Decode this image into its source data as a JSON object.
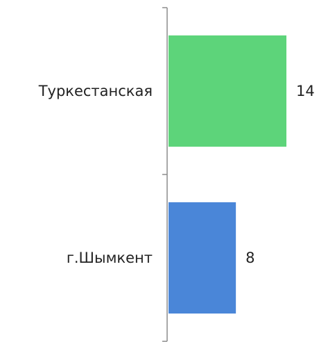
{
  "chart_data": {
    "type": "bar",
    "orientation": "horizontal",
    "categories": [
      "Туркестанская",
      "г.Шымкент"
    ],
    "values": [
      14,
      8
    ],
    "colors": [
      "#5dd47a",
      "#4a86d8"
    ],
    "xlim": [
      0,
      14
    ],
    "grid": false,
    "legend": "none"
  }
}
